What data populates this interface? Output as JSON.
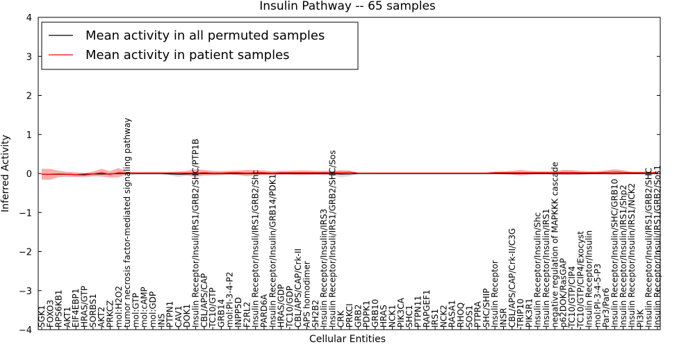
{
  "chart_data": {
    "type": "line",
    "title": "Insulin Pathway -- 65 samples",
    "xlabel": "Cellular Entities",
    "ylabel": "Inferred Activity",
    "ylim": [
      -4,
      4
    ],
    "yticks": [
      -4,
      -3,
      -2,
      -1,
      0,
      1,
      2,
      3,
      4
    ],
    "legend_position": "top-left",
    "categories": [
      "SGK1",
      "FOXO3",
      "RPS6KB1",
      "AKT1",
      "EIF4EBP1",
      "HRAS/GTP",
      "SORBS1",
      "AKT2",
      "PRKCZ",
      "mol:H2O2",
      "tumor necrosis factor-mediated signaling pathway",
      "mol:GTP",
      "mol:cAMP",
      "mol:GDP",
      "INS",
      "PTPN1",
      "CAV1",
      "DOK1",
      "Insulin Receptor/Insuli/IRS1/GRB2/SHC/PTP1B",
      "CBL/APS/CAP",
      "TC10/GTP",
      "GRB14",
      "mol:PI-3-4-P2",
      "INPP5D",
      "F2RL2",
      "Insulin Receptor/Insuli/IRS1/GRB2/Shc",
      "PARD6A",
      "Insulin Receptor/Insulin/GRB14/PDK1",
      "HRAS/GDP",
      "TC10/GDP",
      "CBL/APS/CAP/Crk-II",
      "APS homodimer",
      "SH2B2",
      "Insulin Receptor/Insulin/IRS3",
      "Insulin Receptor/Insuli/IRS1/GRB2/SHC/Sos",
      "CRK",
      "PRKCI",
      "GRB2",
      "PDPK1",
      "GRB10",
      "HRAS",
      "NCK1",
      "PIK3CA",
      "SHC1",
      "PTPN11",
      "RAPGEF1",
      "IRS1",
      "NCK2",
      "RASA1",
      "RHOQ",
      "SOS1",
      "PTPRA",
      "SHC/SHIP",
      "Insulin Receptor",
      "INSR",
      "CBL/APS/CAP/Crk-II/C3G",
      "TRIP10",
      "PIK3R1",
      "Insulin Receptor/Insulin/Shc",
      "Insulin Receptor/Insulin/IRS1",
      "negative regulation of MAPKKK cascade",
      "p62DOK/RasGAP",
      "TC10/GTP/CIP4",
      "TC10/GTP/CIP4/Exocyst",
      "Insulin Receptor/Insulin",
      "mol:PI-3-4-5-P3",
      "Par3/Par6",
      "Insulin Receptor/Insulin/SHC/GRB10",
      "Insulin Receptor/Insulin/IRS1/Shp2",
      "Insulin Receptor/Insulin/IRS1/NCK2",
      "PI3K",
      "Insulin Receptor/Insuli/IRS1/GRB2/SHC",
      "Insulin Receptor/Insuli/IRS1/GRB2/Sos1"
    ],
    "series": [
      {
        "name": "Mean activity in all permuted samples",
        "color": "#000000",
        "band_color": "#9aa4c0",
        "values": [
          -0.02,
          -0.02,
          -0.02,
          -0.02,
          -0.03,
          -0.02,
          -0.01,
          -0.01,
          -0.01,
          0,
          0,
          0,
          0,
          0,
          0,
          -0.01,
          -0.02,
          -0.01,
          0,
          0,
          0,
          0,
          0,
          0,
          0,
          0,
          0,
          0,
          0,
          0,
          0,
          0,
          0,
          0,
          0,
          -0.01,
          -0.01,
          0,
          0,
          0,
          0,
          0,
          0,
          0,
          0,
          0,
          0,
          0,
          0,
          0,
          0,
          0,
          0,
          0,
          0,
          0,
          0,
          0,
          0,
          0,
          0,
          0,
          0,
          0,
          0,
          0,
          0,
          0,
          0,
          0,
          0,
          0,
          0
        ],
        "band": [
          0.02,
          0.02,
          0.02,
          0.02,
          0.03,
          0.03,
          0.02,
          0.02,
          0.02,
          0.02,
          0.02,
          0.02,
          0.02,
          0.02,
          0.02,
          0.04,
          0.07,
          0.04,
          0.02,
          0.02,
          0.02,
          0.02,
          0.02,
          0.03,
          0.03,
          0.02,
          0.02,
          0.02,
          0.02,
          0.02,
          0.02,
          0.02,
          0.02,
          0.03,
          0.05,
          0.09,
          0.06,
          0.02,
          0.02,
          0.02,
          0.02,
          0.02,
          0.02,
          0.02,
          0.02,
          0.02,
          0.02,
          0.02,
          0.02,
          0.02,
          0.02,
          0.02,
          0.02,
          0.02,
          0.02,
          0.02,
          0.02,
          0.02,
          0.02,
          0.02,
          0.03,
          0.04,
          0.03,
          0.02,
          0.02,
          0.02,
          0.02,
          0.02,
          0.02,
          0.02,
          0.02,
          0.02,
          0.02
        ]
      },
      {
        "name": "Mean activity in patient samples",
        "color": "#ff0000",
        "band_color": "#ff5a5a",
        "values": [
          -0.02,
          -0.02,
          -0.01,
          -0.02,
          -0.03,
          -0.04,
          -0.01,
          0.02,
          -0.02,
          0.02,
          0.01,
          0.01,
          0.01,
          0.01,
          0.01,
          0.01,
          0.01,
          0.01,
          0.01,
          0.02,
          0.01,
          0.01,
          0.02,
          0.02,
          0.01,
          0.02,
          0.02,
          0.01,
          0.02,
          0.02,
          0.02,
          0.02,
          0.02,
          0.02,
          0.02,
          0.02,
          0.03,
          0.01,
          0.01,
          0.01,
          0.01,
          0.01,
          0.01,
          0.01,
          0.01,
          0.01,
          0.01,
          0.01,
          0.01,
          0.01,
          0.01,
          0.01,
          0.01,
          0.02,
          0.02,
          0.02,
          0.02,
          0.02,
          0.02,
          0.02,
          0.02,
          0.03,
          0.03,
          0.02,
          0.02,
          0.02,
          0.03,
          0.04,
          0.03,
          0.02,
          0.02,
          0.02,
          0.02
        ],
        "band": [
          0.14,
          0.14,
          0.08,
          0.06,
          0.06,
          0.05,
          0.06,
          0.1,
          0.08,
          0.12,
          0.03,
          0.03,
          0.03,
          0.03,
          0.03,
          0.03,
          0.04,
          0.06,
          0.1,
          0.07,
          0.06,
          0.05,
          0.05,
          0.06,
          0.08,
          0.07,
          0.06,
          0.05,
          0.05,
          0.05,
          0.06,
          0.06,
          0.05,
          0.05,
          0.05,
          0.06,
          0.05,
          0.01,
          0.01,
          0.01,
          0.01,
          0.01,
          0.01,
          0.01,
          0.01,
          0.01,
          0.01,
          0.01,
          0.01,
          0.01,
          0.01,
          0.01,
          0.01,
          0.03,
          0.04,
          0.05,
          0.07,
          0.05,
          0.04,
          0.04,
          0.04,
          0.06,
          0.06,
          0.05,
          0.04,
          0.04,
          0.05,
          0.07,
          0.05,
          0.03,
          0.03,
          0.03,
          0.03
        ]
      }
    ]
  }
}
